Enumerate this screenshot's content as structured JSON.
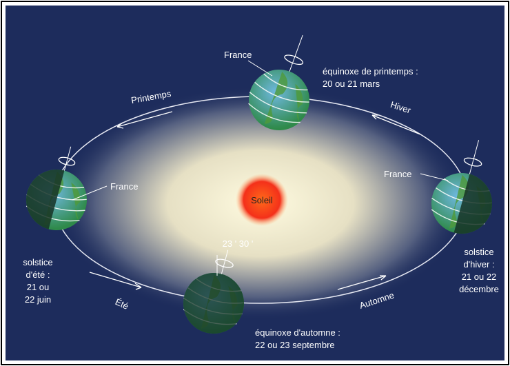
{
  "sun": {
    "label": "Soleil"
  },
  "seasons": [
    "Printemps",
    "Hiver",
    "Été",
    "Automne"
  ],
  "tilt_label": "23 ' 30 '",
  "positions": [
    {
      "marker": "France",
      "caption": [
        "équinoxe de printemps :",
        "20 ou 21 mars"
      ]
    },
    {
      "marker": "France",
      "caption": [
        "solstice",
        "d'été :",
        "21 ou",
        "22 juin"
      ]
    },
    {
      "marker": "France",
      "caption": [
        "solstice",
        "d'hiver :",
        "21 ou 22",
        "décembre"
      ]
    },
    {
      "caption": [
        "équinoxe d'automne :",
        "22 ou 23 septembre"
      ]
    }
  ]
}
